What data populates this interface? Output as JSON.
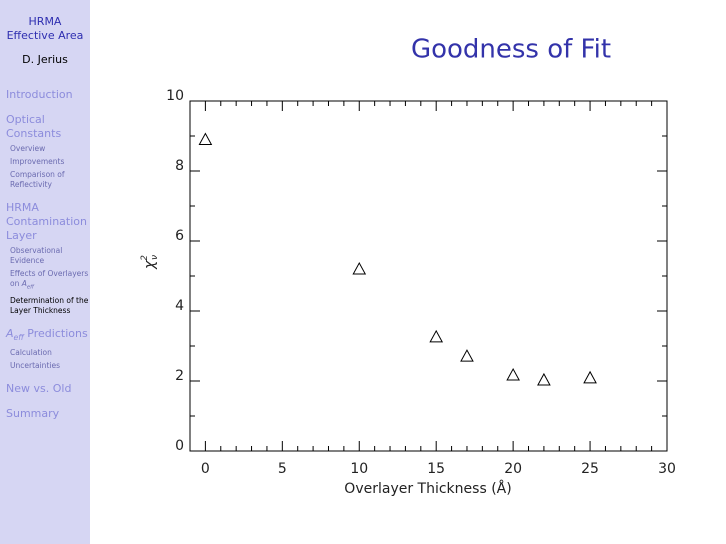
{
  "sidebar": {
    "title": [
      "HRMA",
      "Effective Area"
    ],
    "author": "D. Jerius",
    "sections": [
      {
        "lines": [
          [
            "Introduction"
          ]
        ],
        "items": []
      },
      {
        "lines": [
          [
            "Optical"
          ],
          [
            "Constants"
          ]
        ],
        "items": [
          {
            "lines": [
              [
                "Overview"
              ]
            ]
          },
          {
            "lines": [
              [
                "Improvements"
              ]
            ]
          },
          {
            "lines": [
              [
                "Comparison of"
              ],
              [
                "Reflectivity"
              ]
            ]
          }
        ]
      },
      {
        "lines": [
          [
            "HRMA"
          ],
          [
            "Contamination"
          ],
          [
            "Layer"
          ]
        ],
        "items": [
          {
            "lines": [
              [
                "Observational"
              ],
              [
                "Evidence"
              ]
            ]
          },
          {
            "lines": [
              [
                "Effects of Overlayers"
              ],
              [
                "on ",
                {
                  "i": "A",
                  "sub": "eff"
                }
              ]
            ]
          },
          {
            "lines": [
              [
                "Determination of the"
              ],
              [
                "Layer Thickness"
              ]
            ],
            "active": true
          }
        ]
      },
      {
        "lines": [
          [
            {
              "i": "A",
              "sub": "eff"
            },
            " Predictions"
          ]
        ],
        "items": [
          {
            "lines": [
              [
                "Calculation"
              ]
            ]
          },
          {
            "lines": [
              [
                "Uncertainties"
              ]
            ]
          }
        ]
      },
      {
        "lines": [
          [
            "New vs. Old"
          ]
        ],
        "items": []
      },
      {
        "lines": [
          [
            "Summary"
          ]
        ],
        "items": []
      }
    ]
  },
  "chart_data": {
    "type": "scatter",
    "title": "Goodness of Fit",
    "xlabel": "Overlayer Thickness (Å)",
    "ylabel": {
      "main": "χ",
      "sup": "2",
      "sub": "ν"
    },
    "x": [
      0,
      10,
      15,
      17,
      20,
      22,
      25
    ],
    "values": [
      8.9,
      5.2,
      3.26,
      2.71,
      2.17,
      2.03,
      2.09
    ],
    "color": "#000000",
    "marker": "triangle",
    "xlim": [
      -1,
      30
    ],
    "ylim": [
      0,
      10
    ],
    "xticks": [
      0,
      5,
      10,
      15,
      20,
      25,
      30
    ],
    "yticks": [
      0,
      2,
      4,
      6,
      8,
      10
    ],
    "xminorticks": [
      1,
      2,
      3,
      4,
      6,
      7,
      8,
      9,
      11,
      12,
      13,
      14,
      16,
      17,
      18,
      19,
      21,
      22,
      23,
      24,
      26,
      27,
      28,
      29
    ],
    "yminorticks": [
      1,
      3,
      5,
      7,
      9
    ]
  }
}
